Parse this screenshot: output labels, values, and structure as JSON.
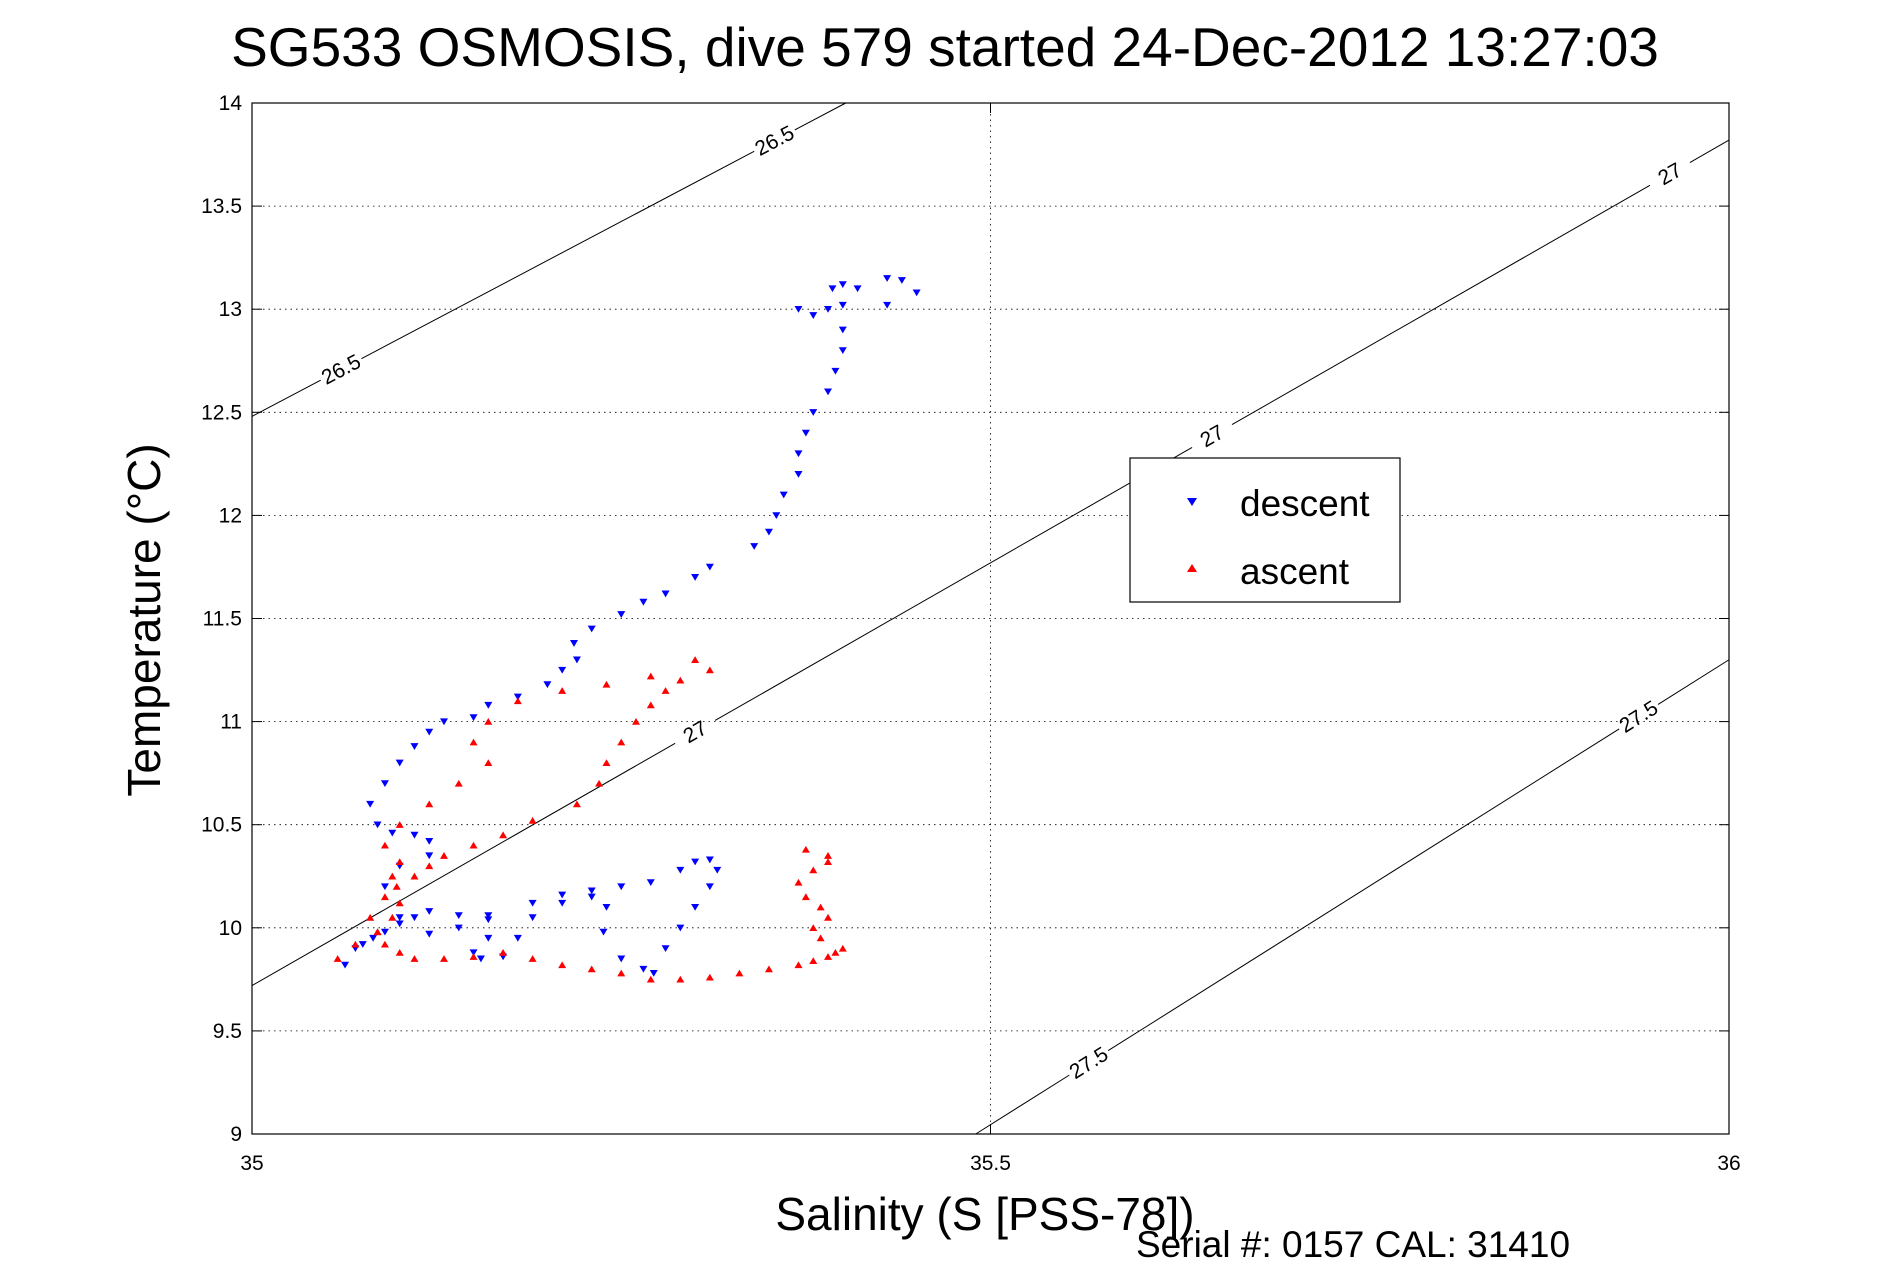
{
  "chart_data": {
    "type": "scatter",
    "title": "SG533 OSMOSIS, dive 579 started 24-Dec-2012 13:27:03",
    "xlabel": "Salinity (S [PSS-78])",
    "ylabel": "Temperature (°C)",
    "footer": "Serial #: 0157  CAL: 31410",
    "xlim": [
      35,
      36
    ],
    "ylim": [
      9,
      14
    ],
    "xticks": [
      "35",
      "35.5",
      "36"
    ],
    "yticks": [
      "9",
      "9.5",
      "10",
      "10.5",
      "11",
      "11.5",
      "12",
      "12.5",
      "13",
      "13.5",
      "14"
    ],
    "grid": true,
    "legend_position": "center-right",
    "contours": [
      {
        "level": "26.5",
        "labels": [
          "26.5",
          "26.5"
        ],
        "points": [
          [
            35.0,
            12.48
          ],
          [
            35.402,
            14.0
          ]
        ]
      },
      {
        "level": "27",
        "labels": [
          "27",
          "27",
          "27"
        ],
        "points": [
          [
            35.0,
            9.72
          ],
          [
            36.0,
            13.82
          ]
        ]
      },
      {
        "level": "27.5",
        "labels": [
          "27.5",
          "27.5"
        ],
        "points": [
          [
            35.49,
            9.0
          ],
          [
            36.0,
            11.3
          ]
        ]
      }
    ],
    "series": [
      {
        "name": "descent",
        "color": "#0000ff",
        "marker": "triangle-down",
        "x": [
          35.063,
          35.07,
          35.075,
          35.082,
          35.09,
          35.1,
          35.11,
          35.12,
          35.14,
          35.16,
          35.16,
          35.15,
          35.155,
          35.17,
          35.18,
          35.19,
          35.21,
          35.23,
          35.24,
          35.238,
          35.25,
          35.265,
          35.272,
          35.28,
          35.29,
          35.3,
          35.31,
          35.315,
          35.31,
          35.3,
          35.29,
          35.27,
          35.25,
          35.23,
          35.21,
          35.19,
          35.16,
          35.14,
          35.12,
          35.1,
          35.09,
          35.1,
          35.12,
          35.12,
          35.11,
          35.095,
          35.085,
          35.08,
          35.09,
          35.1,
          35.11,
          35.12,
          35.13,
          35.15,
          35.16,
          35.18,
          35.2,
          35.21,
          35.22,
          35.218,
          35.23,
          35.25,
          35.265,
          35.28,
          35.3,
          35.31,
          35.34,
          35.35,
          35.355,
          35.36,
          35.37,
          35.37,
          35.375,
          35.38,
          35.39,
          35.395,
          35.4,
          35.4,
          35.39,
          35.393,
          35.4,
          35.41,
          35.43,
          35.44,
          35.45,
          35.43,
          35.4,
          35.38,
          35.37
        ],
        "y": [
          9.82,
          9.9,
          9.92,
          9.95,
          9.98,
          10.02,
          10.05,
          10.08,
          10.06,
          10.04,
          9.95,
          9.88,
          9.85,
          9.86,
          9.95,
          10.05,
          10.12,
          10.15,
          10.1,
          9.98,
          9.85,
          9.8,
          9.78,
          9.9,
          10.0,
          10.1,
          10.2,
          10.28,
          10.33,
          10.32,
          10.28,
          10.22,
          10.2,
          10.18,
          10.16,
          10.12,
          10.06,
          10.0,
          9.97,
          10.05,
          10.2,
          10.3,
          10.35,
          10.42,
          10.45,
          10.46,
          10.5,
          10.6,
          10.7,
          10.8,
          10.88,
          10.95,
          11.0,
          11.02,
          11.08,
          11.12,
          11.18,
          11.25,
          11.3,
          11.38,
          11.45,
          11.52,
          11.58,
          11.62,
          11.7,
          11.75,
          11.85,
          11.92,
          12.0,
          12.1,
          12.2,
          12.3,
          12.4,
          12.5,
          12.6,
          12.7,
          12.8,
          12.9,
          13.0,
          13.1,
          13.12,
          13.1,
          13.15,
          13.14,
          13.08,
          13.02,
          13.02,
          12.97,
          13.0
        ]
      },
      {
        "name": "ascent",
        "color": "#ff0000",
        "marker": "triangle-up",
        "x": [
          35.058,
          35.07,
          35.085,
          35.095,
          35.1,
          35.098,
          35.11,
          35.12,
          35.13,
          35.15,
          35.17,
          35.19,
          35.22,
          35.235,
          35.24,
          35.25,
          35.26,
          35.27,
          35.28,
          35.29,
          35.31,
          35.3,
          35.27,
          35.24,
          35.21,
          35.18,
          35.16,
          35.15,
          35.16,
          35.14,
          35.12,
          35.1,
          35.09,
          35.1,
          35.095,
          35.09,
          35.08,
          35.085,
          35.09,
          35.1,
          35.11,
          35.13,
          35.15,
          35.17,
          35.19,
          35.21,
          35.23,
          35.25,
          35.27,
          35.29,
          35.31,
          35.33,
          35.35,
          35.37,
          35.38,
          35.39,
          35.395,
          35.4,
          35.385,
          35.38,
          35.39,
          35.385,
          35.375,
          35.37,
          35.38,
          35.39,
          35.39,
          35.375
        ],
        "y": [
          9.85,
          9.92,
          9.98,
          10.05,
          10.12,
          10.2,
          10.25,
          10.3,
          10.35,
          10.4,
          10.45,
          10.52,
          10.6,
          10.7,
          10.8,
          10.9,
          11.0,
          11.08,
          11.15,
          11.2,
          11.25,
          11.3,
          11.22,
          11.18,
          11.15,
          11.1,
          11.0,
          10.9,
          10.8,
          10.7,
          10.6,
          10.5,
          10.4,
          10.32,
          10.25,
          10.15,
          10.05,
          9.98,
          9.92,
          9.88,
          9.85,
          9.85,
          9.86,
          9.88,
          9.85,
          9.82,
          9.8,
          9.78,
          9.75,
          9.75,
          9.76,
          9.78,
          9.8,
          9.82,
          9.84,
          9.86,
          9.88,
          9.9,
          9.95,
          10.0,
          10.05,
          10.1,
          10.15,
          10.22,
          10.28,
          10.32,
          10.35,
          10.38
        ]
      }
    ]
  }
}
